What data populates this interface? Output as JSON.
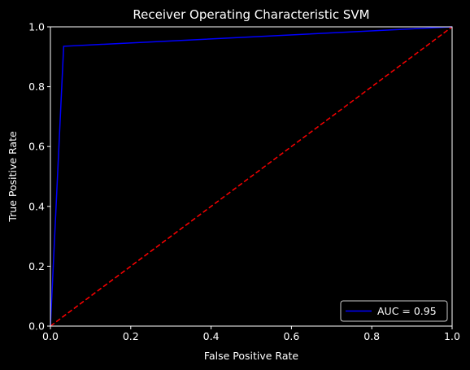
{
  "chart_data": {
    "type": "line",
    "title": "Receiver Operating Characteristic SVM",
    "xlabel": "False Positive Rate",
    "ylabel": "True Positive Rate",
    "xlim": [
      0,
      1
    ],
    "ylim": [
      0,
      1
    ],
    "xticks": [
      "0.0",
      "0.2",
      "0.4",
      "0.6",
      "0.8",
      "1.0"
    ],
    "yticks": [
      "0.0",
      "0.2",
      "0.4",
      "0.6",
      "0.8",
      "1.0"
    ],
    "grid": false,
    "legend_position": "lower-right",
    "series": [
      {
        "name": "AUC = 0.95",
        "color": "#0000ff",
        "style": "solid",
        "x": [
          0.0,
          0.033,
          1.0
        ],
        "y": [
          0.0,
          0.935,
          1.0
        ]
      },
      {
        "color": "#ff0000",
        "style": "dashed",
        "x": [
          0,
          1
        ],
        "y": [
          0,
          1
        ]
      }
    ]
  },
  "colors": {
    "background": "#000000",
    "axes": "#ffffff",
    "text": "#ffffff",
    "legend_border": "#cccccc"
  }
}
